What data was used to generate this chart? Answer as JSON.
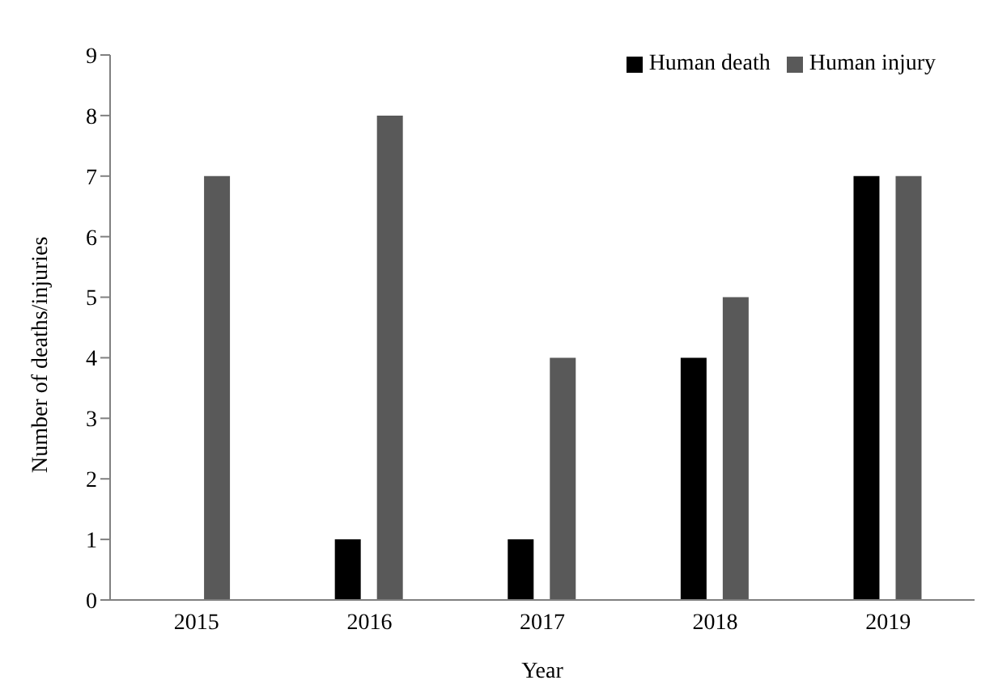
{
  "chart_data": {
    "type": "bar",
    "xlabel": "Year",
    "ylabel": "Number of deaths/injuries",
    "categories": [
      "2015",
      "2016",
      "2017",
      "2018",
      "2019"
    ],
    "series": [
      {
        "name": "Human death",
        "color": "#000000",
        "values": [
          0,
          1,
          1,
          4,
          7
        ]
      },
      {
        "name": "Human injury",
        "color": "#595959",
        "values": [
          7,
          8,
          4,
          5,
          7
        ]
      }
    ],
    "ylim": [
      0,
      9
    ],
    "yticks": [
      0,
      1,
      2,
      3,
      4,
      5,
      6,
      7,
      8,
      9
    ],
    "grid": false,
    "legend": "top right"
  }
}
